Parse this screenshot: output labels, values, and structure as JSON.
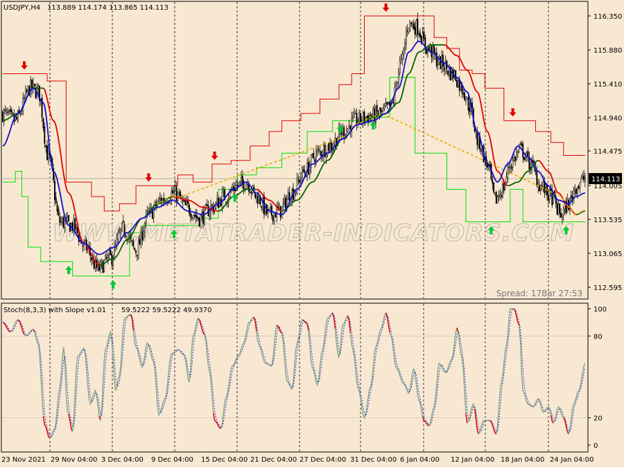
{
  "colors": {
    "background": "#f8e8d2",
    "candle": "#000000",
    "upper_channel": "#e00000",
    "lower_channel": "#00dd00",
    "fast_ma": "#1010cc",
    "slow_ma": "#006400",
    "slow_ma_down": "#e00000",
    "trigger_line": "#e0b000",
    "arrow_up": "#00cc33",
    "arrow_down": "#e00000",
    "stoch_main": "#88aa88",
    "stoch_main_down": "#e00000",
    "stoch_signal": "#3333cc",
    "watermark": "#c0b8ae"
  },
  "header": {
    "symbol_label": "USDJPY,H4",
    "ohlc": "113.889 114.174 113.865 114.113"
  },
  "watermark": "WWW.METATRADER-INDICATORS.COM",
  "spread_label": "Spread: 17Bar  27:53",
  "chart_data": [
    {
      "type": "candlestick",
      "name": "main",
      "ylim": [
        112.45,
        116.45
      ],
      "y_ticks": [
        "116.350",
        "115.880",
        "115.410",
        "114.940",
        "114.475",
        "114.005",
        "113.535",
        "113.065",
        "112.595"
      ],
      "current_price": "114.113",
      "x_labels": [
        "23 Nov 2021",
        "29 Nov 04:00",
        "3 Dec 04:00",
        "9 Dec 04:00",
        "15 Dec 04:00",
        "21 Dec 04:00",
        "27 Dec 04:00",
        "31 Dec 04:00",
        "6 Jan 04:00",
        "12 Jan 04:00",
        "18 Jan 04:00",
        "24 Jan 04:00"
      ],
      "close_anchors": [
        [
          0,
          115.0
        ],
        [
          10,
          114.9
        ],
        [
          22,
          115.35
        ],
        [
          28,
          115.3
        ],
        [
          36,
          114.4
        ],
        [
          45,
          113.5
        ],
        [
          55,
          113.45
        ],
        [
          65,
          113.15
        ],
        [
          75,
          112.85
        ],
        [
          85,
          113.0
        ],
        [
          95,
          113.4
        ],
        [
          105,
          113.1
        ],
        [
          115,
          113.6
        ],
        [
          125,
          113.8
        ],
        [
          135,
          113.9
        ],
        [
          145,
          113.7
        ],
        [
          155,
          113.55
        ],
        [
          165,
          113.7
        ],
        [
          175,
          113.85
        ],
        [
          185,
          114.0
        ],
        [
          192,
          114.05
        ],
        [
          200,
          113.85
        ],
        [
          210,
          113.6
        ],
        [
          218,
          113.65
        ],
        [
          228,
          113.9
        ],
        [
          238,
          114.2
        ],
        [
          248,
          114.45
        ],
        [
          258,
          114.55
        ],
        [
          268,
          114.75
        ],
        [
          278,
          114.9
        ],
        [
          288,
          114.95
        ],
        [
          298,
          115.0
        ],
        [
          306,
          115.1
        ],
        [
          314,
          115.7
        ],
        [
          320,
          116.25
        ],
        [
          326,
          116.2
        ],
        [
          335,
          115.9
        ],
        [
          345,
          115.7
        ],
        [
          355,
          115.55
        ],
        [
          362,
          115.35
        ],
        [
          368,
          115.1
        ],
        [
          375,
          114.6
        ],
        [
          382,
          114.3
        ],
        [
          388,
          113.8
        ],
        [
          394,
          113.95
        ],
        [
          400,
          114.3
        ],
        [
          408,
          114.5
        ],
        [
          416,
          114.3
        ],
        [
          424,
          114.0
        ],
        [
          432,
          113.85
        ],
        [
          440,
          113.6
        ],
        [
          446,
          113.75
        ],
        [
          452,
          114.0
        ],
        [
          459,
          114.1
        ]
      ],
      "fast_ma_anchors": [
        [
          0,
          114.55
        ],
        [
          12,
          115.0
        ],
        [
          24,
          115.35
        ],
        [
          32,
          115.15
        ],
        [
          40,
          114.2
        ],
        [
          52,
          113.45
        ],
        [
          64,
          113.2
        ],
        [
          76,
          113.05
        ],
        [
          88,
          113.15
        ],
        [
          98,
          113.35
        ],
        [
          110,
          113.55
        ],
        [
          122,
          113.7
        ],
        [
          134,
          113.8
        ],
        [
          146,
          113.65
        ],
        [
          158,
          113.6
        ],
        [
          170,
          113.75
        ],
        [
          182,
          113.95
        ],
        [
          192,
          114.05
        ],
        [
          200,
          113.9
        ],
        [
          210,
          113.65
        ],
        [
          220,
          113.6
        ],
        [
          232,
          113.95
        ],
        [
          244,
          114.3
        ],
        [
          256,
          114.45
        ],
        [
          268,
          114.65
        ],
        [
          280,
          114.85
        ],
        [
          292,
          114.9
        ],
        [
          302,
          115.0
        ],
        [
          312,
          115.35
        ],
        [
          320,
          115.85
        ],
        [
          328,
          116.0
        ],
        [
          338,
          115.85
        ],
        [
          348,
          115.7
        ],
        [
          358,
          115.5
        ],
        [
          366,
          115.3
        ],
        [
          374,
          114.75
        ],
        [
          382,
          114.3
        ],
        [
          390,
          114.05
        ],
        [
          398,
          114.3
        ],
        [
          406,
          114.55
        ],
        [
          414,
          114.4
        ],
        [
          422,
          114.2
        ],
        [
          430,
          114.0
        ],
        [
          438,
          113.8
        ],
        [
          446,
          113.75
        ],
        [
          452,
          113.85
        ],
        [
          459,
          113.9
        ]
      ],
      "slow_ma_anchors": [
        [
          0,
          114.9
        ],
        [
          12,
          115.0
        ],
        [
          24,
          115.35
        ],
        [
          32,
          115.35
        ],
        [
          40,
          114.9
        ],
        [
          52,
          113.9
        ],
        [
          64,
          113.2
        ],
        [
          76,
          112.9
        ],
        [
          88,
          113.0
        ],
        [
          98,
          113.25
        ],
        [
          110,
          113.55
        ],
        [
          122,
          113.75
        ],
        [
          134,
          113.85
        ],
        [
          146,
          113.8
        ],
        [
          158,
          113.7
        ],
        [
          170,
          113.65
        ],
        [
          182,
          113.85
        ],
        [
          192,
          113.95
        ],
        [
          200,
          113.95
        ],
        [
          210,
          113.8
        ],
        [
          220,
          113.65
        ],
        [
          232,
          113.8
        ],
        [
          244,
          114.05
        ],
        [
          256,
          114.35
        ],
        [
          268,
          114.65
        ],
        [
          280,
          114.85
        ],
        [
          292,
          114.95
        ],
        [
          302,
          115.0
        ],
        [
          312,
          115.15
        ],
        [
          320,
          115.55
        ],
        [
          328,
          115.85
        ],
        [
          338,
          115.95
        ],
        [
          348,
          115.95
        ],
        [
          358,
          115.8
        ],
        [
          366,
          115.6
        ],
        [
          374,
          115.3
        ],
        [
          382,
          114.75
        ],
        [
          390,
          114.2
        ],
        [
          398,
          114.0
        ],
        [
          406,
          114.05
        ],
        [
          414,
          114.2
        ],
        [
          422,
          114.35
        ],
        [
          430,
          114.2
        ],
        [
          438,
          113.9
        ],
        [
          446,
          113.7
        ],
        [
          452,
          113.6
        ],
        [
          459,
          113.65
        ]
      ],
      "upper_channel_steps": [
        [
          0,
          115.55
        ],
        [
          20,
          115.55
        ],
        [
          35,
          115.45
        ],
        [
          50,
          114.05
        ],
        [
          70,
          113.85
        ],
        [
          80,
          113.65
        ],
        [
          92,
          113.75
        ],
        [
          105,
          114.0
        ],
        [
          138,
          114.15
        ],
        [
          150,
          114.05
        ],
        [
          165,
          114.3
        ],
        [
          180,
          114.35
        ],
        [
          195,
          114.55
        ],
        [
          210,
          114.75
        ],
        [
          220,
          114.9
        ],
        [
          235,
          115.0
        ],
        [
          250,
          115.2
        ],
        [
          265,
          115.4
        ],
        [
          275,
          115.55
        ],
        [
          285,
          116.35
        ],
        [
          300,
          116.35
        ],
        [
          330,
          116.35
        ],
        [
          340,
          116.05
        ],
        [
          350,
          115.9
        ],
        [
          360,
          115.6
        ],
        [
          370,
          115.55
        ],
        [
          380,
          115.35
        ],
        [
          395,
          114.9
        ],
        [
          420,
          114.75
        ],
        [
          432,
          114.6
        ],
        [
          442,
          114.42
        ],
        [
          459,
          114.42
        ]
      ],
      "lower_channel_steps": [
        [
          0,
          114.05
        ],
        [
          10,
          114.2
        ],
        [
          15,
          113.85
        ],
        [
          20,
          113.15
        ],
        [
          30,
          112.95
        ],
        [
          55,
          112.75
        ],
        [
          90,
          112.75
        ],
        [
          100,
          113.35
        ],
        [
          110,
          113.45
        ],
        [
          135,
          113.45
        ],
        [
          155,
          113.55
        ],
        [
          170,
          113.95
        ],
        [
          185,
          114.15
        ],
        [
          200,
          114.25
        ],
        [
          220,
          114.45
        ],
        [
          240,
          114.75
        ],
        [
          260,
          114.9
        ],
        [
          285,
          114.95
        ],
        [
          305,
          115.5
        ],
        [
          320,
          115.5
        ],
        [
          325,
          114.45
        ],
        [
          340,
          114.45
        ],
        [
          350,
          113.95
        ],
        [
          365,
          113.5
        ],
        [
          395,
          113.5
        ],
        [
          400,
          113.95
        ],
        [
          410,
          113.5
        ],
        [
          459,
          113.5
        ]
      ],
      "arrows_up_at": [
        52,
        87,
        135,
        183,
        266,
        292,
        385,
        444
      ],
      "arrows_down_at": [
        17,
        115,
        167,
        302,
        402
      ]
    },
    {
      "type": "line",
      "name": "Stoch(8,3,3) with Slope v1.01",
      "values_label": "59.5222 59.5222 49.9370",
      "ylim": [
        0,
        100
      ],
      "y_ticks": [
        "100",
        "80",
        "20",
        "0"
      ],
      "levels": [
        20,
        80
      ],
      "main_anchors": [
        [
          0,
          90
        ],
        [
          6,
          83
        ],
        [
          12,
          92
        ],
        [
          18,
          80
        ],
        [
          24,
          85
        ],
        [
          28,
          74
        ],
        [
          33,
          15
        ],
        [
          37,
          5
        ],
        [
          41,
          12
        ],
        [
          45,
          42
        ],
        [
          48,
          72
        ],
        [
          51,
          25
        ],
        [
          55,
          10
        ],
        [
          59,
          65
        ],
        [
          64,
          71
        ],
        [
          69,
          30
        ],
        [
          73,
          40
        ],
        [
          77,
          18
        ],
        [
          81,
          70
        ],
        [
          85,
          83
        ],
        [
          89,
          40
        ],
        [
          92,
          51
        ],
        [
          96,
          93
        ],
        [
          101,
          96
        ],
        [
          105,
          72
        ],
        [
          110,
          57
        ],
        [
          114,
          75
        ],
        [
          119,
          61
        ],
        [
          123,
          22
        ],
        [
          128,
          34
        ],
        [
          133,
          67
        ],
        [
          138,
          70
        ],
        [
          143,
          66
        ],
        [
          147,
          46
        ],
        [
          150,
          80
        ],
        [
          154,
          93
        ],
        [
          159,
          81
        ],
        [
          163,
          54
        ],
        [
          167,
          18
        ],
        [
          172,
          12
        ],
        [
          176,
          35
        ],
        [
          181,
          58
        ],
        [
          186,
          66
        ],
        [
          190,
          75
        ],
        [
          194,
          90
        ],
        [
          198,
          94
        ],
        [
          202,
          73
        ],
        [
          207,
          60
        ],
        [
          212,
          58
        ],
        [
          216,
          88
        ],
        [
          220,
          82
        ],
        [
          224,
          47
        ],
        [
          228,
          41
        ],
        [
          232,
          75
        ],
        [
          236,
          92
        ],
        [
          240,
          89
        ],
        [
          244,
          57
        ],
        [
          248,
          44
        ],
        [
          252,
          70
        ],
        [
          256,
          93
        ],
        [
          260,
          97
        ],
        [
          265,
          64
        ],
        [
          268,
          88
        ],
        [
          272,
          95
        ],
        [
          276,
          70
        ],
        [
          280,
          42
        ],
        [
          285,
          20
        ],
        [
          290,
          43
        ],
        [
          294,
          72
        ],
        [
          298,
          85
        ],
        [
          302,
          97
        ],
        [
          306,
          80
        ],
        [
          310,
          57
        ],
        [
          316,
          45
        ],
        [
          320,
          38
        ],
        [
          324,
          56
        ],
        [
          328,
          33
        ],
        [
          332,
          18
        ],
        [
          336,
          14
        ],
        [
          340,
          28
        ],
        [
          344,
          60
        ],
        [
          349,
          53
        ],
        [
          354,
          63
        ],
        [
          358,
          86
        ],
        [
          362,
          64
        ],
        [
          366,
          16
        ],
        [
          371,
          30
        ],
        [
          375,
          8
        ],
        [
          379,
          18
        ],
        [
          384,
          18
        ],
        [
          389,
          8
        ],
        [
          393,
          46
        ],
        [
          397,
          73
        ],
        [
          400,
          100
        ],
        [
          403,
          100
        ],
        [
          407,
          88
        ],
        [
          410,
          40
        ],
        [
          414,
          30
        ],
        [
          418,
          28
        ],
        [
          422,
          34
        ],
        [
          426,
          24
        ],
        [
          430,
          28
        ],
        [
          434,
          16
        ],
        [
          438,
          28
        ],
        [
          442,
          20
        ],
        [
          446,
          8
        ],
        [
          450,
          30
        ],
        [
          454,
          40
        ],
        [
          459,
          60
        ]
      ]
    }
  ]
}
